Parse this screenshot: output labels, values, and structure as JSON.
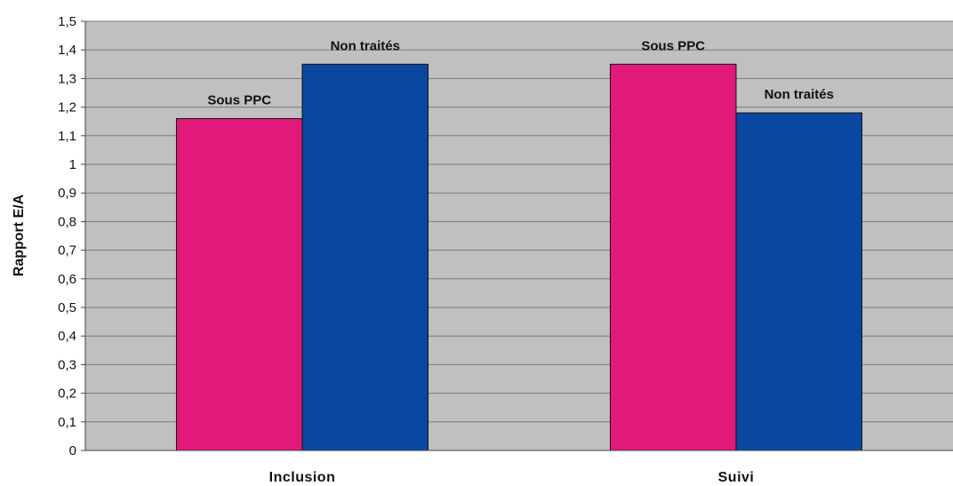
{
  "chart_data": {
    "type": "bar",
    "categories": [
      "Inclusion",
      "Suivi"
    ],
    "series": [
      {
        "values": [
          1.16,
          1.35
        ],
        "color": "#e0197a",
        "labels": [
          "Sous PPC",
          "Sous PPC"
        ]
      },
      {
        "values": [
          1.35,
          1.18
        ],
        "color": "#0a47a0",
        "labels": [
          "Non traités",
          "Non traités"
        ]
      }
    ],
    "title": "",
    "xlabel": "",
    "ylabel": "Rapport E/A",
    "ylim": [
      0,
      1.5
    ],
    "yticks": [
      "0",
      "0,1",
      "0,2",
      "0,3",
      "0,4",
      "0,5",
      "0,6",
      "0,7",
      "0,8",
      "0,9",
      "1",
      "1,1",
      "1,2",
      "1,3",
      "1,4",
      "1,5"
    ],
    "grid": true,
    "legend": "none",
    "plot_background": "#c0c0c0"
  }
}
